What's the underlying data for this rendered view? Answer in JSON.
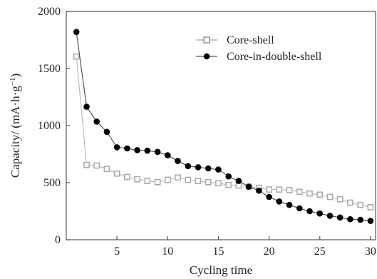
{
  "chart_data": {
    "type": "line",
    "xlabel": "Cycling time",
    "ylabel_prefix": "Capacity/ (mA·h·g",
    "ylabel_sup": "−1",
    "ylabel_suffix": ")",
    "xlim": [
      0,
      30.5
    ],
    "ylim": [
      0,
      2000
    ],
    "xticks": [
      5,
      10,
      15,
      20,
      25,
      30
    ],
    "yticks": [
      0,
      500,
      1000,
      1500,
      2000
    ],
    "grid": false,
    "legend_position": "top-right",
    "series": [
      {
        "name": "Core-shell",
        "marker": "open-square",
        "color": "#a8a8a8",
        "x": [
          1,
          2,
          3,
          4,
          5,
          6,
          7,
          8,
          9,
          10,
          11,
          12,
          13,
          14,
          15,
          16,
          17,
          18,
          19,
          20,
          21,
          22,
          23,
          24,
          25,
          26,
          27,
          28,
          29,
          30
        ],
        "values": [
          1605,
          655,
          650,
          620,
          580,
          550,
          530,
          515,
          505,
          525,
          545,
          525,
          515,
          505,
          495,
          480,
          475,
          465,
          455,
          440,
          440,
          435,
          420,
          405,
          395,
          375,
          355,
          325,
          305,
          285
        ]
      },
      {
        "name": "Core-in-double-shell",
        "marker": "filled-circle",
        "color": "#000000",
        "x": [
          1,
          2,
          3,
          4,
          5,
          6,
          7,
          8,
          9,
          10,
          11,
          12,
          13,
          14,
          15,
          16,
          17,
          18,
          19,
          20,
          21,
          22,
          23,
          24,
          25,
          26,
          27,
          28,
          29,
          30
        ],
        "values": [
          1820,
          1165,
          1035,
          945,
          810,
          800,
          785,
          780,
          770,
          740,
          690,
          645,
          635,
          625,
          615,
          555,
          515,
          465,
          430,
          375,
          335,
          305,
          275,
          250,
          230,
          210,
          195,
          180,
          175,
          165
        ]
      }
    ]
  }
}
